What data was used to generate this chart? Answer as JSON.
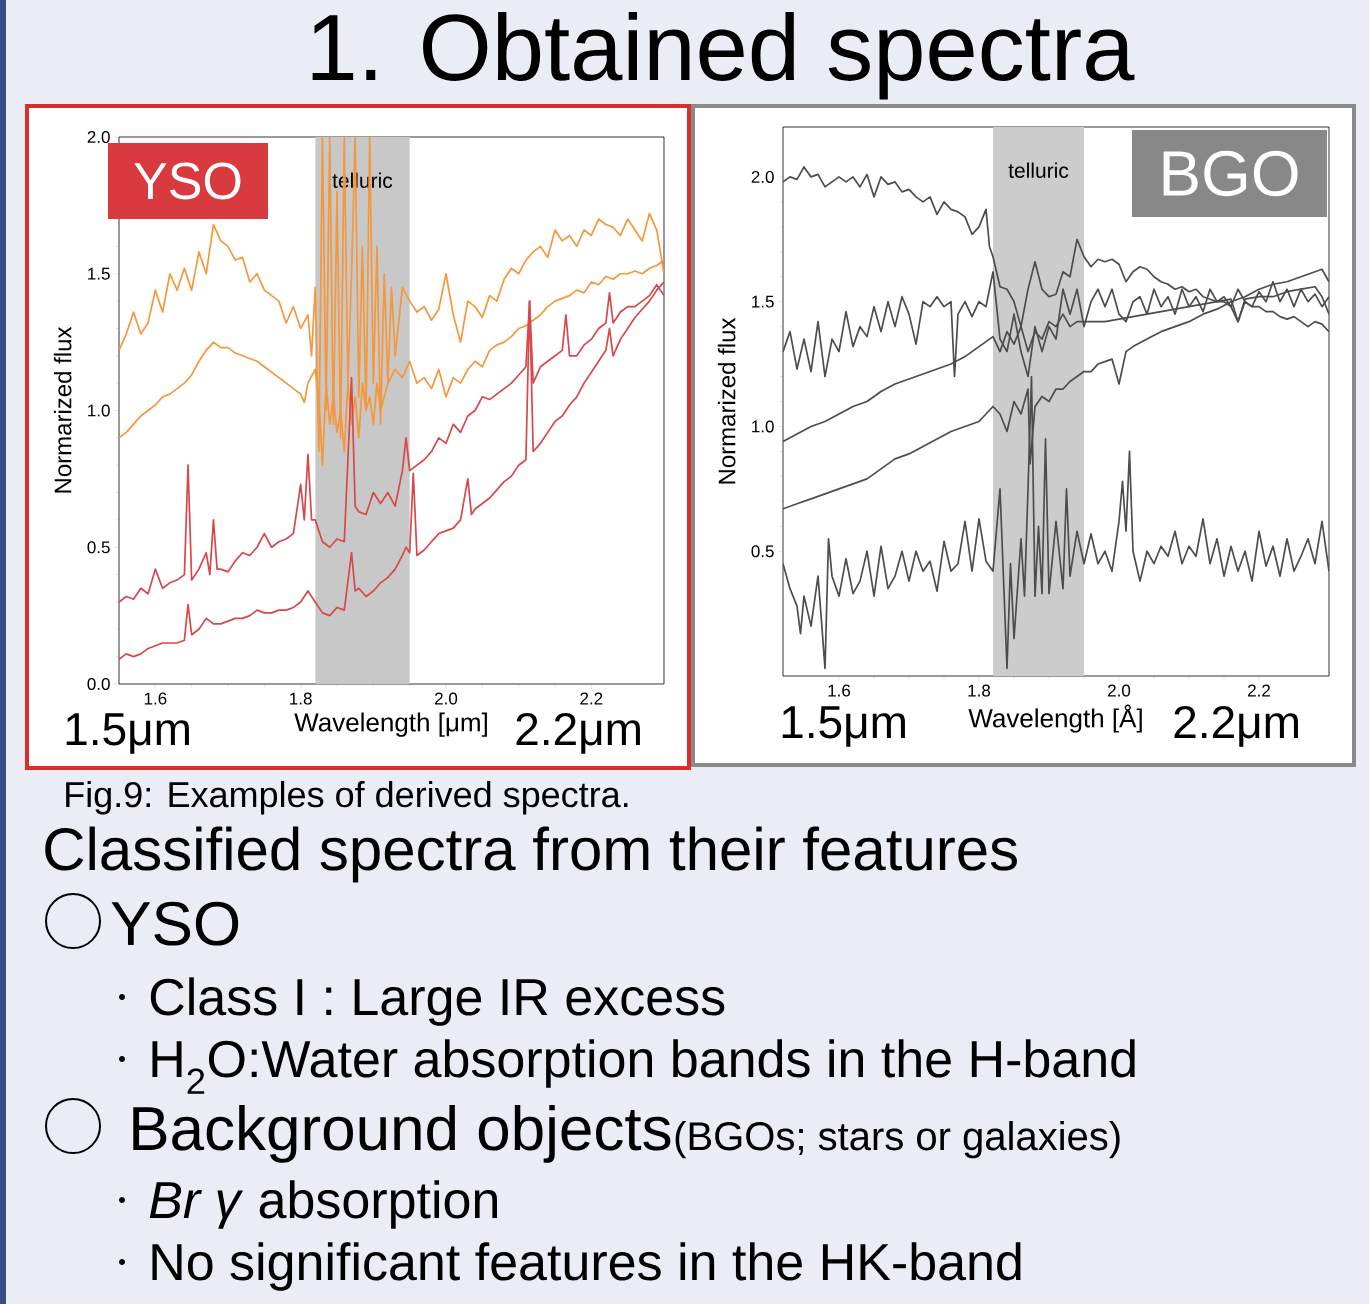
{
  "chart_data": [
    {
      "type": "other",
      "title": "1. Obtained spectra",
      "annotations": [
        "Fig.9: Examples of derived spectra.",
        "Classified spectra from their features",
        "YSO",
        "Class I : Large IR excess",
        "H$_{2}$O:Water absorption bands in the H-band",
        "Background objects",
        "(BGOs; stars or galaxies)",
        "*Br γ* absorption",
        "No significant features in the HK-band"
      ]
    },
    {
      "type": "line",
      "xlabel": "Wavelength [μm]",
      "ylabel": "Normarized flux",
      "annotations": [
        "YSO",
        "1.5μm",
        "2.2μm"
      ],
      "xlim": [
        1.55,
        2.3
      ],
      "ylim": [
        0,
        2.0
      ],
      "xticks": [
        1.6,
        1.8,
        {
          "value": 2.0,
          "label": "2.0"
        },
        2.2
      ],
      "yticks": [
        {
          "value": 0,
          "label": "0.0"
        },
        {
          "value": 0.5,
          "label": "0.5"
        },
        {
          "value": 1.0,
          "label": "1.0"
        },
        {
          "value": 1.5,
          "label": "1.5"
        },
        {
          "value": 2.0,
          "label": "2.0"
        }
      ],
      "bands": [
        {
          "axis": "x",
          "from": 1.82,
          "to": 1.95,
          "label": "telluric",
          "color": "#c8c8c8"
        }
      ],
      "series": [
        {
          "color": "#f5973a",
          "x": [
            1.55,
            1.56,
            1.57,
            1.58,
            1.59,
            1.6,
            1.61,
            1.62,
            1.63,
            1.64,
            1.65,
            1.66,
            1.67,
            1.68,
            1.69,
            1.7,
            1.71,
            1.72,
            1.73,
            1.74,
            1.75,
            1.76,
            1.77,
            1.78,
            1.79,
            1.8,
            1.81,
            1.815,
            1.82,
            1.825,
            1.83,
            1.835,
            1.84,
            1.845,
            1.85,
            1.855,
            1.86,
            1.865,
            1.87,
            1.875,
            1.88,
            1.885,
            1.89,
            1.895,
            1.9,
            1.905,
            1.91,
            1.915,
            1.92,
            1.925,
            1.93,
            1.94,
            1.95,
            1.96,
            1.97,
            1.98,
            1.99,
            2.0,
            2.01,
            2.02,
            2.03,
            2.04,
            2.05,
            2.06,
            2.07,
            2.08,
            2.09,
            2.1,
            2.11,
            2.12,
            2.13,
            2.14,
            2.15,
            2.16,
            2.17,
            2.18,
            2.19,
            2.2,
            2.21,
            2.22,
            2.23,
            2.24,
            2.25,
            2.26,
            2.27,
            2.28,
            2.29,
            2.3
          ],
          "values": [
            1.22,
            1.28,
            1.36,
            1.28,
            1.32,
            1.44,
            1.36,
            1.5,
            1.44,
            1.52,
            1.44,
            1.58,
            1.5,
            1.68,
            1.62,
            1.6,
            1.55,
            1.56,
            1.47,
            1.5,
            1.44,
            1.42,
            1.4,
            1.32,
            1.38,
            1.3,
            1.35,
            1.2,
            1.45,
            0.85,
            2.0,
            1.0,
            2.0,
            0.95,
            1.8,
            0.9,
            2.0,
            1.1,
            1.5,
            2.0,
            1.05,
            1.6,
            1.0,
            2.0,
            1.1,
            1.6,
            0.95,
            1.5,
            1.1,
            1.45,
            1.2,
            1.45,
            1.4,
            1.36,
            1.38,
            1.33,
            1.37,
            1.5,
            1.35,
            1.25,
            1.4,
            1.38,
            1.34,
            1.42,
            1.4,
            1.48,
            1.52,
            1.5,
            1.55,
            1.58,
            1.6,
            1.56,
            1.66,
            1.62,
            1.64,
            1.6,
            1.66,
            1.64,
            1.7,
            1.68,
            1.67,
            1.64,
            1.7,
            1.66,
            1.62,
            1.72,
            1.66,
            1.5
          ]
        },
        {
          "color": "#f5973a",
          "x": [
            1.55,
            1.56,
            1.57,
            1.58,
            1.59,
            1.6,
            1.61,
            1.62,
            1.63,
            1.64,
            1.65,
            1.66,
            1.67,
            1.68,
            1.69,
            1.7,
            1.71,
            1.72,
            1.73,
            1.74,
            1.75,
            1.76,
            1.77,
            1.78,
            1.79,
            1.8,
            1.805,
            1.81,
            1.82,
            1.825,
            1.83,
            1.835,
            1.84,
            1.845,
            1.85,
            1.855,
            1.86,
            1.865,
            1.87,
            1.875,
            1.88,
            1.885,
            1.89,
            1.895,
            1.9,
            1.905,
            1.91,
            1.92,
            1.93,
            1.94,
            1.95,
            1.96,
            1.97,
            1.98,
            1.99,
            2.0,
            2.01,
            2.02,
            2.03,
            2.04,
            2.05,
            2.06,
            2.07,
            2.08,
            2.09,
            2.1,
            2.11,
            2.12,
            2.13,
            2.14,
            2.15,
            2.16,
            2.17,
            2.18,
            2.19,
            2.2,
            2.21,
            2.22,
            2.23,
            2.24,
            2.25,
            2.26,
            2.27,
            2.28,
            2.29,
            2.3
          ],
          "values": [
            0.9,
            0.92,
            0.95,
            0.98,
            1.0,
            1.02,
            1.05,
            1.06,
            1.08,
            1.1,
            1.13,
            1.18,
            1.22,
            1.25,
            1.23,
            1.23,
            1.21,
            1.2,
            1.19,
            1.18,
            1.16,
            1.14,
            1.12,
            1.1,
            1.08,
            1.06,
            1.03,
            1.1,
            1.15,
            1.05,
            0.8,
            1.1,
            0.95,
            1.05,
            0.92,
            1.0,
            0.85,
            1.1,
            0.95,
            1.05,
            0.9,
            1.1,
            1.0,
            1.05,
            0.95,
            1.1,
            1.0,
            1.1,
            1.15,
            1.12,
            1.18,
            1.1,
            1.12,
            1.08,
            1.15,
            1.05,
            1.12,
            1.1,
            1.15,
            1.18,
            1.16,
            1.22,
            1.24,
            1.25,
            1.27,
            1.3,
            1.31,
            1.33,
            1.35,
            1.38,
            1.4,
            1.41,
            1.42,
            1.44,
            1.43,
            1.47,
            1.46,
            1.49,
            1.48,
            1.5,
            1.5,
            1.51,
            1.5,
            1.52,
            1.53,
            1.55
          ]
        },
        {
          "color": "#d9474a",
          "x": [
            1.55,
            1.56,
            1.57,
            1.58,
            1.59,
            1.6,
            1.61,
            1.62,
            1.63,
            1.64,
            1.645,
            1.65,
            1.66,
            1.67,
            1.675,
            1.68,
            1.685,
            1.69,
            1.7,
            1.71,
            1.72,
            1.73,
            1.74,
            1.75,
            1.76,
            1.77,
            1.78,
            1.79,
            1.8,
            1.805,
            1.81,
            1.815,
            1.82,
            1.83,
            1.84,
            1.85,
            1.86,
            1.87,
            1.875,
            1.88,
            1.89,
            1.9,
            1.91,
            1.92,
            1.93,
            1.94,
            1.945,
            1.95,
            1.96,
            1.97,
            1.98,
            1.99,
            2.0,
            2.01,
            2.02,
            2.03,
            2.04,
            2.05,
            2.06,
            2.07,
            2.08,
            2.09,
            2.1,
            2.11,
            2.115,
            2.12,
            2.13,
            2.14,
            2.15,
            2.16,
            2.165,
            2.17,
            2.18,
            2.19,
            2.2,
            2.21,
            2.22,
            2.225,
            2.23,
            2.24,
            2.25,
            2.26,
            2.27,
            2.28,
            2.29,
            2.3
          ],
          "values": [
            0.3,
            0.32,
            0.31,
            0.35,
            0.33,
            0.42,
            0.35,
            0.37,
            0.38,
            0.4,
            0.8,
            0.38,
            0.42,
            0.48,
            0.4,
            0.6,
            0.42,
            0.42,
            0.41,
            0.45,
            0.48,
            0.47,
            0.5,
            0.55,
            0.5,
            0.52,
            0.53,
            0.55,
            0.73,
            0.6,
            0.84,
            0.6,
            0.6,
            0.52,
            0.5,
            0.53,
            0.52,
            1.12,
            0.65,
            0.63,
            0.62,
            0.7,
            0.66,
            0.7,
            0.65,
            0.78,
            0.9,
            0.78,
            0.8,
            0.82,
            0.85,
            0.9,
            0.88,
            0.95,
            0.92,
            0.98,
            1.0,
            1.05,
            1.04,
            1.06,
            1.08,
            1.1,
            1.13,
            1.16,
            1.4,
            1.1,
            1.16,
            1.18,
            1.2,
            1.22,
            1.35,
            1.2,
            1.2,
            1.24,
            1.26,
            1.3,
            1.32,
            1.43,
            1.32,
            1.36,
            1.38,
            1.38,
            1.4,
            1.42,
            1.46,
            1.42
          ]
        },
        {
          "color": "#d9474a",
          "x": [
            1.55,
            1.56,
            1.57,
            1.58,
            1.59,
            1.6,
            1.61,
            1.62,
            1.63,
            1.64,
            1.645,
            1.65,
            1.66,
            1.67,
            1.68,
            1.69,
            1.7,
            1.71,
            1.72,
            1.73,
            1.74,
            1.75,
            1.76,
            1.77,
            1.78,
            1.79,
            1.8,
            1.81,
            1.82,
            1.83,
            1.84,
            1.85,
            1.86,
            1.87,
            1.875,
            1.88,
            1.89,
            1.9,
            1.91,
            1.92,
            1.93,
            1.94,
            1.945,
            1.95,
            1.955,
            1.96,
            1.97,
            1.98,
            1.99,
            2.0,
            2.01,
            2.02,
            2.03,
            2.035,
            2.04,
            2.05,
            2.06,
            2.07,
            2.08,
            2.09,
            2.1,
            2.11,
            2.115,
            2.12,
            2.13,
            2.14,
            2.15,
            2.16,
            2.17,
            2.18,
            2.19,
            2.2,
            2.21,
            2.22,
            2.225,
            2.23,
            2.24,
            2.25,
            2.26,
            2.27,
            2.28,
            2.29,
            2.3
          ],
          "values": [
            0.09,
            0.11,
            0.1,
            0.11,
            0.13,
            0.14,
            0.15,
            0.15,
            0.15,
            0.16,
            0.29,
            0.18,
            0.2,
            0.24,
            0.22,
            0.22,
            0.23,
            0.24,
            0.24,
            0.25,
            0.27,
            0.26,
            0.26,
            0.27,
            0.27,
            0.28,
            0.3,
            0.34,
            0.3,
            0.26,
            0.25,
            0.28,
            0.27,
            0.48,
            0.34,
            0.35,
            0.32,
            0.34,
            0.37,
            0.39,
            0.42,
            0.47,
            0.5,
            0.48,
            0.77,
            0.47,
            0.49,
            0.52,
            0.55,
            0.56,
            0.57,
            0.6,
            0.75,
            0.62,
            0.64,
            0.66,
            0.68,
            0.71,
            0.74,
            0.76,
            0.8,
            0.82,
            1.4,
            0.85,
            0.88,
            0.92,
            0.96,
            0.98,
            1.02,
            1.05,
            1.1,
            1.14,
            1.18,
            1.22,
            1.3,
            1.2,
            1.26,
            1.3,
            1.34,
            1.37,
            1.4,
            1.44,
            1.47
          ]
        }
      ]
    },
    {
      "type": "line",
      "xlabel": "Wavelength [Å]",
      "ylabel": "Normarized flux",
      "annotations": [
        "BGO",
        "1.5μm",
        "2.2μm"
      ],
      "xlim": [
        1.52,
        2.3
      ],
      "ylim": [
        0,
        2.2
      ],
      "xticks": [
        1.6,
        1.8,
        {
          "value": 2.0,
          "label": "2.0"
        },
        2.2
      ],
      "yticks": [
        {
          "value": 0.5,
          "label": "0.5"
        },
        {
          "value": 1.0,
          "label": "1.0"
        },
        {
          "value": 1.5,
          "label": "1.5"
        },
        {
          "value": 2.0,
          "label": "2.0"
        }
      ],
      "bands": [
        {
          "axis": "x",
          "from": 1.82,
          "to": 1.95,
          "label": "telluric",
          "color": "#cccccc"
        }
      ],
      "series": [
        {
          "color": "#4d4d4d",
          "x": [
            1.52,
            1.53,
            1.54,
            1.55,
            1.56,
            1.57,
            1.58,
            1.59,
            1.6,
            1.61,
            1.62,
            1.63,
            1.64,
            1.65,
            1.66,
            1.67,
            1.68,
            1.69,
            1.7,
            1.71,
            1.72,
            1.73,
            1.74,
            1.75,
            1.76,
            1.77,
            1.78,
            1.79,
            1.8,
            1.81,
            1.815,
            1.82,
            1.83,
            1.84,
            1.85,
            1.86,
            1.87,
            1.88,
            1.89,
            1.9,
            1.91,
            1.92,
            1.93,
            1.94,
            1.95,
            1.96,
            1.97,
            1.98,
            1.99,
            2.0,
            2.01,
            2.02,
            2.03,
            2.04,
            2.05,
            2.06,
            2.07,
            2.08,
            2.09,
            2.1,
            2.11,
            2.12,
            2.13,
            2.14,
            2.15,
            2.16,
            2.17,
            2.18,
            2.19,
            2.2,
            2.21,
            2.22,
            2.23,
            2.24,
            2.25,
            2.26,
            2.27,
            2.28,
            2.29,
            2.3
          ],
          "values": [
            1.98,
            2.0,
            1.99,
            2.04,
            2.0,
            2.01,
            1.96,
            1.98,
            2.0,
            1.98,
            2.0,
            1.96,
            2.01,
            1.92,
            2.0,
            1.97,
            1.98,
            1.94,
            1.95,
            1.92,
            1.9,
            1.92,
            1.85,
            1.9,
            1.87,
            1.86,
            1.84,
            1.77,
            1.8,
            1.87,
            1.72,
            1.68,
            1.56,
            1.55,
            1.5,
            1.4,
            1.55,
            1.66,
            1.55,
            1.52,
            1.53,
            1.62,
            1.6,
            1.75,
            1.68,
            1.64,
            1.67,
            1.66,
            1.67,
            1.65,
            1.58,
            1.62,
            1.64,
            1.63,
            1.6,
            1.58,
            1.57,
            1.55,
            1.56,
            1.54,
            1.55,
            1.52,
            1.51,
            1.5,
            1.5,
            1.48,
            1.42,
            1.5,
            1.48,
            1.48,
            1.46,
            1.46,
            1.44,
            1.43,
            1.44,
            1.42,
            1.4,
            1.42,
            1.41,
            1.38
          ]
        },
        {
          "color": "#4d4d4d",
          "x": [
            1.52,
            1.53,
            1.54,
            1.55,
            1.56,
            1.57,
            1.58,
            1.59,
            1.6,
            1.61,
            1.62,
            1.63,
            1.64,
            1.65,
            1.66,
            1.67,
            1.68,
            1.69,
            1.7,
            1.71,
            1.72,
            1.73,
            1.74,
            1.75,
            1.76,
            1.765,
            1.77,
            1.78,
            1.79,
            1.8,
            1.81,
            1.82,
            1.83,
            1.84,
            1.85,
            1.86,
            1.87,
            1.88,
            1.89,
            1.9,
            1.91,
            1.92,
            1.93,
            1.94,
            1.95,
            1.96,
            1.97,
            1.98,
            1.99,
            2.0,
            2.01,
            2.02,
            2.03,
            2.04,
            2.05,
            2.06,
            2.07,
            2.08,
            2.09,
            2.1,
            2.11,
            2.12,
            2.13,
            2.14,
            2.15,
            2.16,
            2.17,
            2.18,
            2.19,
            2.2,
            2.21,
            2.22,
            2.23,
            2.24,
            2.25,
            2.26,
            2.27,
            2.28,
            2.29,
            2.3
          ],
          "values": [
            1.3,
            1.38,
            1.23,
            1.35,
            1.22,
            1.42,
            1.2,
            1.35,
            1.3,
            1.46,
            1.32,
            1.4,
            1.36,
            1.48,
            1.38,
            1.5,
            1.4,
            1.52,
            1.45,
            1.33,
            1.5,
            1.48,
            1.52,
            1.48,
            1.5,
            1.2,
            1.45,
            1.5,
            1.44,
            1.5,
            1.48,
            1.62,
            1.35,
            1.3,
            1.45,
            1.3,
            1.2,
            1.4,
            1.3,
            1.4,
            1.35,
            1.55,
            1.45,
            1.55,
            1.4,
            1.5,
            1.55,
            1.48,
            1.55,
            1.45,
            1.42,
            1.5,
            1.52,
            1.45,
            1.55,
            1.48,
            1.52,
            1.45,
            1.55,
            1.48,
            1.52,
            1.46,
            1.55,
            1.5,
            1.52,
            1.48,
            1.55,
            1.5,
            1.48,
            1.54,
            1.5,
            1.58,
            1.5,
            1.55,
            1.48,
            1.55,
            1.5,
            1.53,
            1.48,
            1.52
          ]
        },
        {
          "color": "#4d4d4d",
          "x": [
            1.52,
            1.54,
            1.56,
            1.58,
            1.6,
            1.62,
            1.64,
            1.66,
            1.68,
            1.7,
            1.72,
            1.74,
            1.76,
            1.78,
            1.8,
            1.82,
            1.83,
            1.84,
            1.85,
            1.86,
            1.87,
            1.88,
            1.89,
            1.9,
            1.91,
            1.92,
            1.93,
            1.94,
            1.96,
            1.98,
            2.0,
            2.02,
            2.04,
            2.06,
            2.08,
            2.1,
            2.12,
            2.14,
            2.16,
            2.17,
            2.18,
            2.2,
            2.22,
            2.24,
            2.26,
            2.28,
            2.29,
            2.3
          ],
          "values": [
            0.94,
            0.97,
            1.0,
            1.02,
            1.05,
            1.08,
            1.1,
            1.14,
            1.17,
            1.19,
            1.21,
            1.23,
            1.25,
            1.28,
            1.32,
            1.36,
            1.3,
            1.38,
            1.33,
            1.4,
            1.3,
            1.38,
            1.35,
            1.42,
            1.4,
            1.45,
            1.4,
            1.42,
            1.42,
            1.42,
            1.43,
            1.44,
            1.45,
            1.46,
            1.47,
            1.48,
            1.49,
            1.5,
            1.51,
            1.42,
            1.51,
            1.52,
            1.52,
            1.54,
            1.55,
            1.56,
            1.52,
            1.45
          ]
        },
        {
          "color": "#4d4d4d",
          "x": [
            1.52,
            1.54,
            1.56,
            1.58,
            1.6,
            1.62,
            1.64,
            1.66,
            1.68,
            1.7,
            1.72,
            1.74,
            1.76,
            1.78,
            1.8,
            1.82,
            1.83,
            1.84,
            1.85,
            1.86,
            1.87,
            1.873,
            1.88,
            1.89,
            1.9,
            1.91,
            1.92,
            1.93,
            1.94,
            1.95,
            1.96,
            1.97,
            1.98,
            1.99,
            2.0,
            2.01,
            2.02,
            2.04,
            2.06,
            2.08,
            2.1,
            2.12,
            2.14,
            2.16,
            2.18,
            2.2,
            2.22,
            2.24,
            2.26,
            2.28,
            2.29,
            2.3
          ],
          "values": [
            0.67,
            0.69,
            0.71,
            0.73,
            0.75,
            0.77,
            0.79,
            0.83,
            0.87,
            0.89,
            0.92,
            0.95,
            0.98,
            1.0,
            1.02,
            1.08,
            1.05,
            0.98,
            1.1,
            1.05,
            1.15,
            0.85,
            1.08,
            1.12,
            1.1,
            1.15,
            1.15,
            1.18,
            1.2,
            1.22,
            1.22,
            1.25,
            1.26,
            1.27,
            1.17,
            1.3,
            1.32,
            1.35,
            1.38,
            1.4,
            1.42,
            1.45,
            1.47,
            1.5,
            1.52,
            1.55,
            1.57,
            1.58,
            1.6,
            1.62,
            1.63,
            1.58
          ]
        },
        {
          "color": "#4d4d4d",
          "x": [
            1.52,
            1.53,
            1.54,
            1.545,
            1.55,
            1.56,
            1.57,
            1.575,
            1.58,
            1.585,
            1.59,
            1.6,
            1.61,
            1.62,
            1.63,
            1.64,
            1.65,
            1.66,
            1.67,
            1.68,
            1.69,
            1.7,
            1.71,
            1.72,
            1.73,
            1.74,
            1.75,
            1.76,
            1.77,
            1.78,
            1.79,
            1.8,
            1.81,
            1.82,
            1.83,
            1.84,
            1.845,
            1.85,
            1.86,
            1.865,
            1.87,
            1.875,
            1.88,
            1.885,
            1.89,
            1.895,
            1.9,
            1.91,
            1.92,
            1.925,
            1.93,
            1.94,
            1.95,
            1.96,
            1.97,
            1.98,
            1.99,
            2.0,
            2.005,
            2.01,
            2.015,
            2.02,
            2.03,
            2.04,
            2.05,
            2.06,
            2.07,
            2.08,
            2.09,
            2.1,
            2.11,
            2.12,
            2.13,
            2.14,
            2.15,
            2.16,
            2.17,
            2.18,
            2.19,
            2.2,
            2.21,
            2.22,
            2.23,
            2.24,
            2.25,
            2.26,
            2.27,
            2.28,
            2.29,
            2.3
          ],
          "values": [
            0.45,
            0.35,
            0.28,
            0.17,
            0.32,
            0.2,
            0.4,
            0.22,
            0.03,
            0.55,
            0.4,
            0.32,
            0.47,
            0.33,
            0.38,
            0.5,
            0.32,
            0.52,
            0.35,
            0.4,
            0.5,
            0.38,
            0.5,
            0.42,
            0.46,
            0.34,
            0.54,
            0.42,
            0.45,
            0.62,
            0.42,
            0.63,
            0.46,
            0.42,
            0.75,
            0.03,
            0.45,
            0.15,
            0.55,
            0.32,
            0.75,
            1.2,
            0.32,
            0.6,
            0.33,
            0.95,
            0.33,
            0.62,
            0.35,
            0.75,
            0.4,
            0.58,
            0.45,
            0.57,
            0.45,
            0.5,
            0.42,
            0.62,
            0.78,
            0.58,
            0.9,
            0.5,
            0.38,
            0.5,
            0.45,
            0.52,
            0.48,
            0.58,
            0.45,
            0.52,
            0.48,
            0.63,
            0.45,
            0.55,
            0.4,
            0.52,
            0.42,
            0.5,
            0.38,
            0.58,
            0.44,
            0.52,
            0.4,
            0.55,
            0.42,
            0.48,
            0.55,
            0.45,
            0.62,
            0.42
          ]
        }
      ]
    }
  ]
}
